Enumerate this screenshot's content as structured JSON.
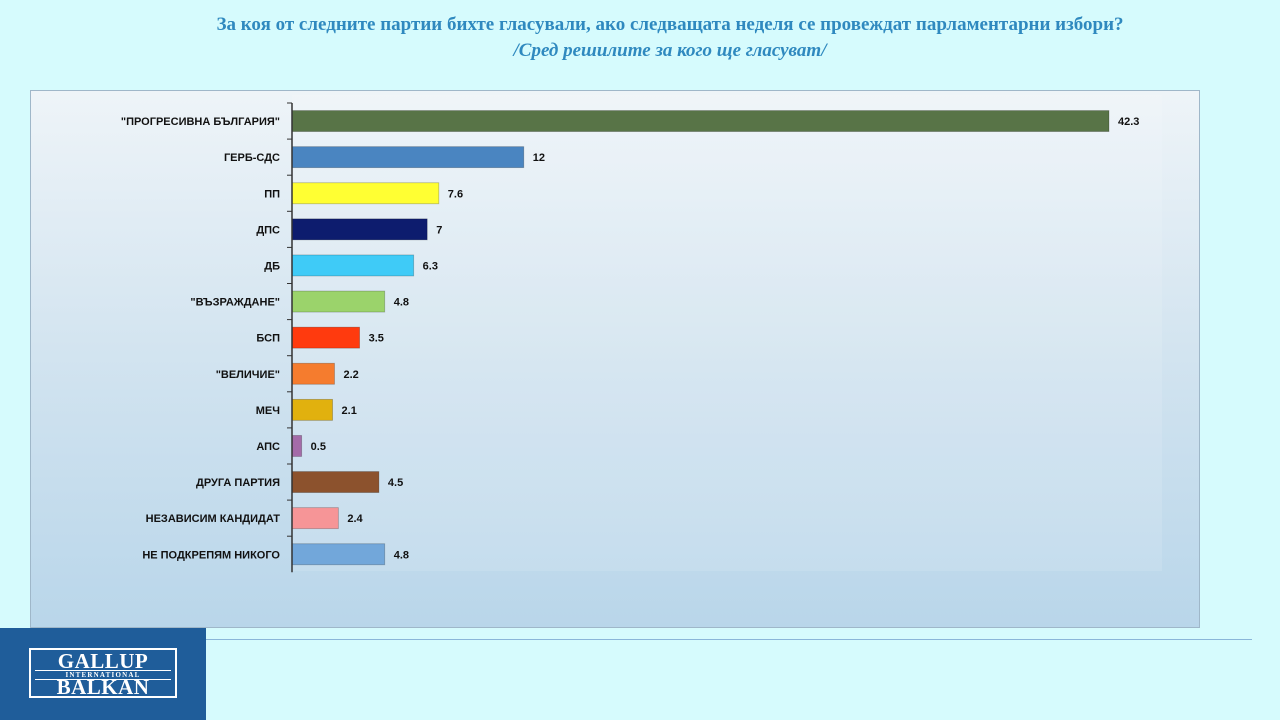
{
  "header": {
    "title": "За коя от следните партии бихте  гласували,  ако следващата неделя се провеждат парламентарни избори?",
    "subtitle": "/Сред решилите за кого ще гласуват/"
  },
  "logo": {
    "line1": "GALLUP",
    "line2": "INTERNATIONAL",
    "line3": "BALKAN"
  },
  "chart_data": {
    "type": "bar",
    "orientation": "horizontal",
    "categories": [
      "\"ПРОГРЕСИВНА БЪЛГАРИЯ\"",
      "ГЕРБ-СДС",
      "ПП",
      "ДПС",
      "ДБ",
      "\"ВЪЗРАЖДАНЕ\"",
      "БСП",
      "\"ВЕЛИЧИЕ\"",
      "МЕЧ",
      "АПС",
      "ДРУГА ПАРТИЯ",
      "НЕЗАВИСИМ КАНДИДАТ",
      "НЕ ПОДКРЕПЯМ НИКОГО"
    ],
    "values": [
      42.3,
      12,
      7.6,
      7,
      6.3,
      4.8,
      3.5,
      2.2,
      2.1,
      0.5,
      4.5,
      2.4,
      4.8
    ],
    "value_labels": [
      "42.3",
      "12",
      "7.6",
      "7",
      "6.3",
      "4.8",
      "3.5",
      "2.2",
      "2.1",
      "0.5",
      "4.5",
      "2.4",
      "4.8"
    ],
    "colors": [
      "#587447",
      "#4a85c1",
      "#ffff33",
      "#0d1c6e",
      "#3fcbf7",
      "#9bd36b",
      "#ff3a0e",
      "#f57c2e",
      "#e1b10e",
      "#a46ba8",
      "#8c522d",
      "#f69597",
      "#72a7da"
    ],
    "xlim": [
      0,
      42.3
    ],
    "grid": false,
    "legend": "none"
  }
}
